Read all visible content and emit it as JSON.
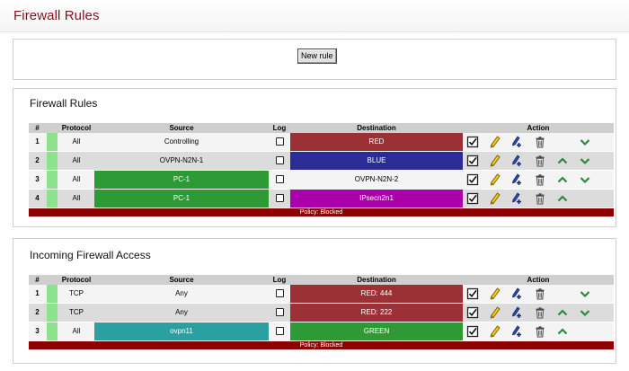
{
  "page": {
    "title": "Firewall Rules"
  },
  "toolbar": {
    "new_rule_label": "New rule"
  },
  "colors": {
    "RED": "#9b3035",
    "BLUE": "#2c2c96",
    "GREEN": "#2e9a36",
    "ORANGE": "#aa00aa",
    "TEAL": "#2aa0a0",
    "status_on": "#8ee28e",
    "policy_bg": "#8b0000",
    "title": "#8b0d1b"
  },
  "columns": {
    "num": "#",
    "protocol": "Protocol",
    "source": "Source",
    "log": "Log",
    "destination": "Destination",
    "action": "Action"
  },
  "firewall_rules": {
    "title": "Firewall Rules",
    "policy": "Policy: Blocked",
    "rows": [
      {
        "num": "1",
        "protocol": "All",
        "source": "Controlling",
        "source_color": "",
        "destination": "RED",
        "dest_color": "#9b3035",
        "up": false,
        "down": true
      },
      {
        "num": "2",
        "protocol": "All",
        "source": "OVPN-N2N-1",
        "source_color": "",
        "destination": "BLUE",
        "dest_color": "#2c2c96",
        "up": true,
        "down": true
      },
      {
        "num": "3",
        "protocol": "All",
        "source": "PC-1",
        "source_color": "#2e9a36",
        "destination": "OVPN-N2N-2",
        "dest_color": "",
        "up": true,
        "down": true
      },
      {
        "num": "4",
        "protocol": "All",
        "source": "PC-1",
        "source_color": "#2e9a36",
        "destination": "IPsecn2n1",
        "dest_color": "#aa00aa",
        "up": true,
        "down": false
      }
    ]
  },
  "incoming_access": {
    "title": "Incoming Firewall Access",
    "policy": "Policy: Blocked",
    "rows": [
      {
        "num": "1",
        "protocol": "TCP",
        "source": "Any",
        "source_color": "",
        "destination": "RED: 444",
        "dest_color": "#9b3035",
        "up": false,
        "down": true
      },
      {
        "num": "2",
        "protocol": "TCP",
        "source": "Any",
        "source_color": "",
        "destination": "RED: 222",
        "dest_color": "#9b3035",
        "up": true,
        "down": true
      },
      {
        "num": "3",
        "protocol": "All",
        "source": "ovpn11",
        "source_color": "#2aa0a0",
        "destination": "GREEN",
        "dest_color": "#2e9a36",
        "up": true,
        "down": false
      }
    ]
  }
}
